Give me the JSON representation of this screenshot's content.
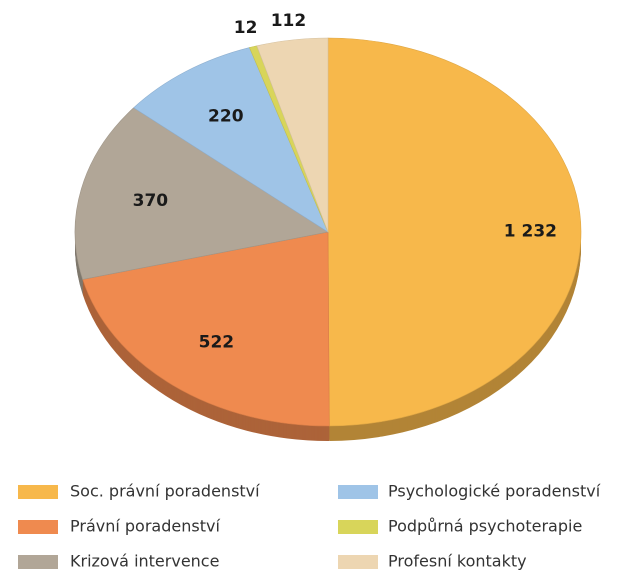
{
  "chart_data": {
    "type": "pie",
    "categories": [
      "Soc. právní poradenství",
      "Právní poradenství",
      "Krizová intervence",
      "Psychologické poradenství",
      "Podpůrná psychoterapie",
      "Profesní kontakty"
    ],
    "values": [
      1232,
      522,
      370,
      220,
      12,
      112
    ],
    "value_labels": [
      "1 232",
      "522",
      "370",
      "220",
      "12",
      "112"
    ],
    "colors": [
      "#f7b84b",
      "#ef8a4f",
      "#b1a697",
      "#9fc4e7",
      "#d8d55a",
      "#edd6b2"
    ],
    "legend": "bottom"
  }
}
